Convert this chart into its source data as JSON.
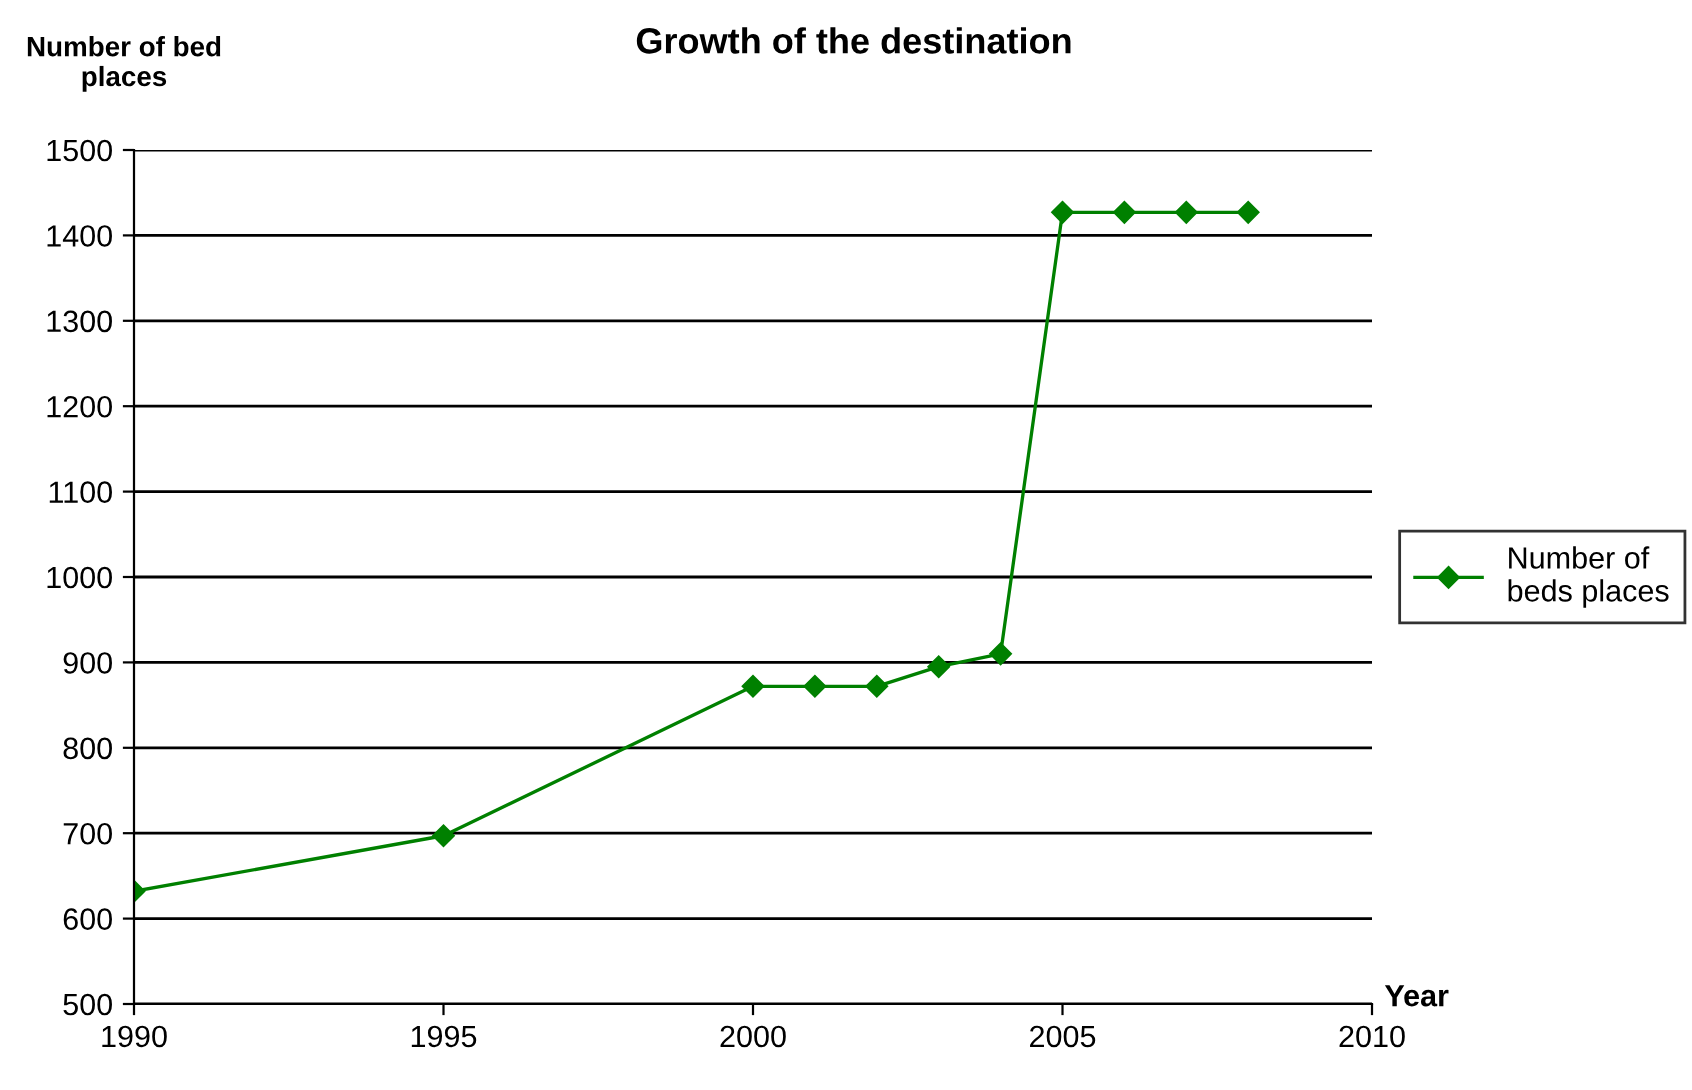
{
  "chart_data": {
    "type": "line",
    "title": "Growth of the destination",
    "xlabel": "Year",
    "ylabel": "Number of bed\nplaces",
    "x": [
      1990,
      1995,
      2000,
      2001,
      2002,
      2003,
      2004,
      2005,
      2006,
      2007,
      2008
    ],
    "series": [
      {
        "name": "Number of\nbeds places",
        "color": "#008000",
        "values": [
          632,
          697,
          872,
          872,
          872,
          895,
          910,
          1427,
          1427,
          1427,
          1427
        ]
      }
    ],
    "xlim": [
      1990,
      2010
    ],
    "xticks": [
      1990,
      1995,
      2000,
      2005,
      2010
    ],
    "ylim": [
      500,
      1500
    ],
    "yticks": [
      500,
      600,
      700,
      800,
      900,
      1000,
      1100,
      1200,
      1300,
      1400,
      1500
    ],
    "grid": "y",
    "legend": "right",
    "marker": "diamond",
    "line_style": "solid"
  }
}
